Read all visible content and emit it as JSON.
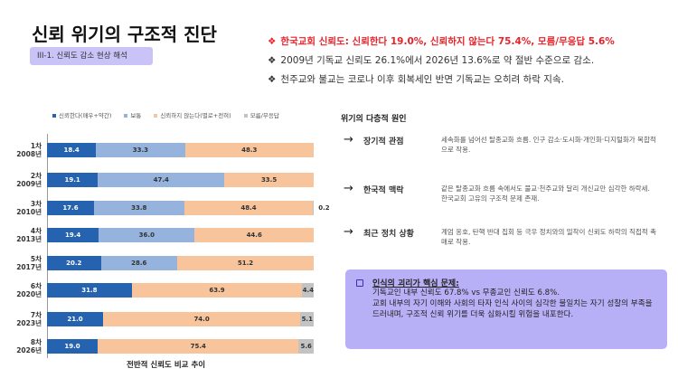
{
  "header": {
    "title": "신뢰 위기의 구조적 진단",
    "badge": "III-1. 신뢰도 감소 현상 해석"
  },
  "bullets": [
    {
      "icon": "diamond-bullet-icon",
      "text": "한국교회 신뢰도: 신뢰한다 19.0%, 신뢰하지 않는다 75.4%, 모름/무응답 5.6%"
    },
    {
      "icon": "diamond-bullet-icon",
      "text": "2009년 기독교 신뢰도 26.1%에서 2026년 13.6%로 약 절반 수준으로 감소."
    },
    {
      "icon": "diamond-bullet-icon",
      "text": "천주교와 불교는 코로나 이후 회복세인 반면 기독교는 오히려 하락 지속."
    }
  ],
  "chart_data": {
    "type": "bar",
    "orientation": "horizontal",
    "stacked": true,
    "title": "전반적 신뢰도 비교 추이",
    "categories": [
      "1차|2008년",
      "2차|2009년",
      "3차|2010년",
      "4차|2013년",
      "5차|2017년",
      "6차|2020년",
      "7차|2023년",
      "8차|2026년"
    ],
    "series": [
      {
        "name": "신뢰한다(매우+약간)",
        "color": "#2563b0",
        "values": [
          18.4,
          19.1,
          17.6,
          19.4,
          20.2,
          31.8,
          21.0,
          19.0
        ]
      },
      {
        "name": "보통",
        "color": "#95b3dc",
        "values": [
          33.3,
          47.4,
          33.8,
          36.0,
          28.6,
          null,
          null,
          null
        ]
      },
      {
        "name": "신뢰하지 않는다(별로+전혀)",
        "color": "#f8c49c",
        "values": [
          48.3,
          33.5,
          48.4,
          44.6,
          51.2,
          63.9,
          74.0,
          75.4
        ]
      },
      {
        "name": "모름/무응답",
        "color": "#c3c3c3",
        "values": [
          null,
          null,
          0.2,
          null,
          null,
          4.4,
          5.1,
          5.6
        ]
      }
    ],
    "xlim": [
      0,
      100
    ],
    "legend": "top"
  },
  "causes": {
    "title": "위기의 다층적 원인",
    "items": [
      {
        "name": "장기적 관점",
        "desc": "세속화를 넘어선 탈종교화 흐름. 인구 감소·도시화·개인화·디지털화가 복합적으로 작용."
      },
      {
        "name": "한국적 맥락",
        "desc": "같은 탈종교화 흐름 속에서도 불교·천주교와 달리 개신교만 심각한 하락세. 한국교회 고유의 구조적 문제 존재."
      },
      {
        "name": "최근 정치 상황",
        "desc": "계엄 옹호, 탄핵 반대 집회 등 극우 정치와의 밀착이 신뢰도 하락의 직접적 촉매로 작용."
      }
    ]
  },
  "insight": {
    "heading": "인식의 괴리가 핵심 문제:",
    "body": "기독교인 내부 신뢰도 67.8% vs 무종교인 신뢰도 6.8%.\n교회 내부의 자기 이해와 사회의 타자 인식 사이의 심각한 불일치는 자기 성찰의 부족을 드러내며, 구조적 신뢰 위기를 더욱 심화시킬 위험을 내포한다."
  }
}
